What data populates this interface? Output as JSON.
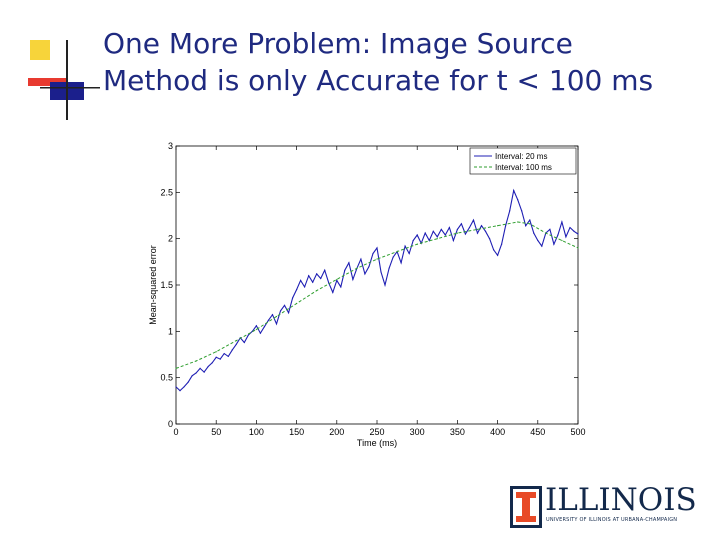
{
  "slide": {
    "title_line1": "One More Problem: Image Source",
    "title_line2": "Method is only Accurate for t < 100 ms",
    "accent_colors": {
      "title": "#1f2a80",
      "yellow": "#f7d43a",
      "red": "#e83a30",
      "blue": "#1b1f8c"
    }
  },
  "logo": {
    "name": "ILLINOIS",
    "subtitle": "UNIVERSITY OF ILLINOIS AT URBANA-CHAMPAIGN",
    "color": "#13294b"
  },
  "chart_data": {
    "type": "line",
    "title": "",
    "xlabel": "Time (ms)",
    "ylabel": "Mean-squared error",
    "xlim": [
      0,
      500
    ],
    "ylim": [
      0,
      3
    ],
    "xticks": [
      0,
      50,
      100,
      150,
      200,
      250,
      300,
      350,
      400,
      450,
      500
    ],
    "yticks": [
      0,
      0.5,
      1,
      1.5,
      2,
      2.5,
      3
    ],
    "legend_position": "top-right",
    "grid": false,
    "series": [
      {
        "name": "Interval: 20 ms",
        "color": "#1f1fb4",
        "style": "solid",
        "x": [
          0,
          5,
          10,
          15,
          20,
          25,
          30,
          35,
          40,
          45,
          50,
          55,
          60,
          65,
          70,
          75,
          80,
          85,
          90,
          95,
          100,
          105,
          110,
          115,
          120,
          125,
          130,
          135,
          140,
          145,
          150,
          155,
          160,
          165,
          170,
          175,
          180,
          185,
          190,
          195,
          200,
          205,
          210,
          215,
          220,
          225,
          230,
          235,
          240,
          245,
          250,
          255,
          260,
          265,
          270,
          275,
          280,
          285,
          290,
          295,
          300,
          305,
          310,
          315,
          320,
          325,
          330,
          335,
          340,
          345,
          350,
          355,
          360,
          365,
          370,
          375,
          380,
          385,
          390,
          395,
          400,
          405,
          410,
          415,
          420,
          425,
          430,
          435,
          440,
          445,
          450,
          455,
          460,
          465,
          470,
          475,
          480,
          485,
          490,
          495,
          500
        ],
        "values": [
          0.4,
          0.36,
          0.4,
          0.45,
          0.52,
          0.55,
          0.6,
          0.56,
          0.62,
          0.66,
          0.72,
          0.7,
          0.76,
          0.73,
          0.8,
          0.86,
          0.93,
          0.88,
          0.96,
          1.0,
          1.06,
          0.98,
          1.05,
          1.12,
          1.18,
          1.08,
          1.22,
          1.28,
          1.2,
          1.36,
          1.45,
          1.55,
          1.48,
          1.6,
          1.53,
          1.62,
          1.57,
          1.66,
          1.52,
          1.42,
          1.55,
          1.48,
          1.66,
          1.74,
          1.56,
          1.68,
          1.78,
          1.62,
          1.7,
          1.84,
          1.9,
          1.64,
          1.5,
          1.68,
          1.8,
          1.86,
          1.74,
          1.92,
          1.84,
          1.98,
          2.04,
          1.95,
          2.06,
          1.98,
          2.08,
          2.02,
          2.1,
          2.04,
          2.12,
          1.98,
          2.1,
          2.16,
          2.05,
          2.12,
          2.2,
          2.06,
          2.14,
          2.08,
          2.0,
          1.88,
          1.82,
          1.94,
          2.14,
          2.3,
          2.52,
          2.42,
          2.3,
          2.14,
          2.2,
          2.06,
          1.98,
          1.92,
          2.06,
          2.1,
          1.94,
          2.04,
          2.18,
          2.02,
          2.12,
          2.08,
          2.05
        ]
      },
      {
        "name": "Interval: 100 ms",
        "color": "#2f9e2f",
        "style": "dashed",
        "x": [
          0,
          25,
          50,
          75,
          100,
          125,
          150,
          175,
          200,
          225,
          250,
          275,
          300,
          325,
          350,
          375,
          400,
          425,
          440,
          460,
          480,
          500
        ],
        "values": [
          0.6,
          0.68,
          0.78,
          0.9,
          1.02,
          1.16,
          1.3,
          1.44,
          1.56,
          1.68,
          1.78,
          1.86,
          1.94,
          2.0,
          2.06,
          2.1,
          2.14,
          2.18,
          2.16,
          2.06,
          1.98,
          1.9
        ]
      }
    ]
  }
}
